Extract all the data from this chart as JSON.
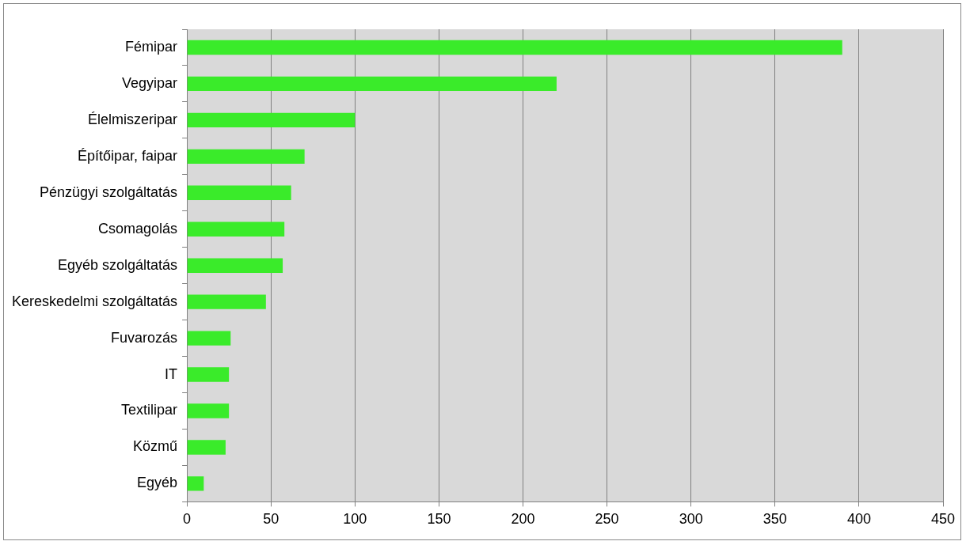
{
  "chart_data": {
    "type": "bar",
    "orientation": "horizontal",
    "categories": [
      "Fémipar",
      "Vegyipar",
      "Élelmiszeripar",
      "Építőipar, faipar",
      "Pénzügyi szolgáltatás",
      "Csomagolás",
      "Egyéb szolgáltatás",
      "Kereskedelmi szolgáltatás",
      "Fuvarozás",
      "IT",
      "Textilipar",
      "Közmű",
      "Egyéb"
    ],
    "values": [
      390,
      220,
      100,
      70,
      62,
      58,
      57,
      47,
      26,
      25,
      25,
      23,
      10
    ],
    "color": "#3aeb2a",
    "xlim": [
      0,
      450
    ],
    "xticks": [
      0,
      50,
      100,
      150,
      200,
      250,
      300,
      350,
      400,
      450
    ],
    "grid": "x"
  }
}
